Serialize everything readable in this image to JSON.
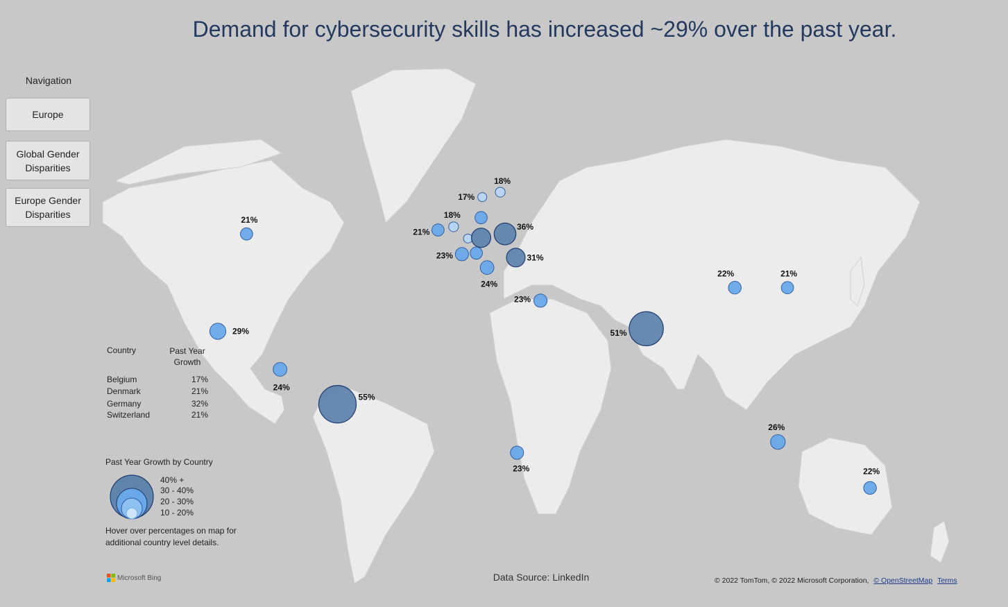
{
  "title": "Demand for cybersecurity skills has increased ~29% over the past year.",
  "navigation": {
    "heading": "Navigation",
    "buttons": [
      {
        "label": "Europe"
      },
      {
        "label": "Global Gender Disparities"
      },
      {
        "label": "Europe Gender Disparities"
      }
    ]
  },
  "table": {
    "col_country": "Country",
    "col_growth": "Past Year Growth",
    "rows": [
      {
        "country": "Belgium",
        "growth": "17%"
      },
      {
        "country": "Denmark",
        "growth": "21%"
      },
      {
        "country": "Germany",
        "growth": "32%"
      },
      {
        "country": "Switzerland",
        "growth": "21%"
      }
    ]
  },
  "size_legend": {
    "title": "Past Year Growth by Country",
    "bins": [
      "40% +",
      "30 - 40%",
      "20 - 30%",
      "10 - 20%"
    ]
  },
  "hover_note": "Hover over percentages on map for additional country level details.",
  "data_source": "Data Source: LinkedIn",
  "attribution": {
    "text": "© 2022 TomTom, © 2022 Microsoft Corporation,",
    "osm_link": "© OpenStreetMap",
    "terms_link": "Terms"
  },
  "bing_logo": "Microsoft Bing",
  "colors": {
    "high": "#5f85ad",
    "mid": "#6aa9e9",
    "low": "#b9d6f5",
    "outline": "#1f3a6e"
  },
  "chart_data": {
    "type": "scatter",
    "title": "Demand for cybersecurity skills has increased ~29% over the past year.",
    "encoding": "bubble map: circle size and colour by past year growth %",
    "bubbles": [
      {
        "id": "canada",
        "region": "Canada",
        "value": 21,
        "label": "21%",
        "lon": -88,
        "lat": 52
      },
      {
        "id": "mexico",
        "region": "Mexico",
        "value": 29,
        "label": "29%",
        "lon": -100,
        "lat": 20
      },
      {
        "id": "colombia",
        "region": "Colombia",
        "value": 24,
        "label": "24%",
        "lon": -74,
        "lat": 4.5
      },
      {
        "id": "brazil",
        "region": "Brazil",
        "value": 55,
        "label": "55%",
        "lon": -50,
        "lat": -10
      },
      {
        "id": "ireland",
        "region": "Ireland",
        "value": 21,
        "label": "21%",
        "lon": -8,
        "lat": 53
      },
      {
        "id": "uk",
        "region": "United Kingdom",
        "value": 18,
        "label": "18%",
        "lon": -1.5,
        "lat": 53.8
      },
      {
        "id": "belgium",
        "region": "Belgium",
        "value": 17,
        "label": "",
        "lon": 4.5,
        "lat": 50.8
      },
      {
        "id": "france",
        "region": "France",
        "value": 23,
        "label": "23%",
        "lon": 2,
        "lat": 46.5
      },
      {
        "id": "switzerland",
        "region": "Switzerland",
        "value": 21,
        "label": "",
        "lon": 8,
        "lat": 46.8
      },
      {
        "id": "germany",
        "region": "Germany",
        "value": 32,
        "label": "",
        "lon": 10,
        "lat": 51
      },
      {
        "id": "denmark",
        "region": "Denmark",
        "value": 21,
        "label": "",
        "lon": 10,
        "lat": 56
      },
      {
        "id": "italy",
        "region": "Italy",
        "value": 24,
        "label": "24%",
        "lon": 12.5,
        "lat": 42.5
      },
      {
        "id": "norway",
        "region": "Norway",
        "value": 17,
        "label": "17%",
        "lon": 10.5,
        "lat": 60.5
      },
      {
        "id": "sweden",
        "region": "Sweden",
        "value": 18,
        "label": "18%",
        "lon": 18,
        "lat": 61.5
      },
      {
        "id": "poland",
        "region": "Poland",
        "value": 36,
        "label": "36%",
        "lon": 20,
        "lat": 52
      },
      {
        "id": "romania",
        "region": "Romania",
        "value": 31,
        "label": "31%",
        "lon": 24.5,
        "lat": 45.5
      },
      {
        "id": "israel",
        "region": "Israel",
        "value": 23,
        "label": "23%",
        "lon": 34.8,
        "lat": 31.5
      },
      {
        "id": "south_africa",
        "region": "South Africa",
        "value": 23,
        "label": "23%",
        "lon": 25,
        "lat": -29
      },
      {
        "id": "india",
        "region": "India",
        "value": 51,
        "label": "51%",
        "lon": 79,
        "lat": 21
      },
      {
        "id": "china",
        "region": "China",
        "value": 22,
        "label": "22%",
        "lon": 116,
        "lat": 36
      },
      {
        "id": "japan",
        "region": "Japan",
        "value": 21,
        "label": "21%",
        "lon": 138,
        "lat": 36
      },
      {
        "id": "australia",
        "region": "Australia",
        "value": 26,
        "label": "26%",
        "lon": 134,
        "lat": -25
      },
      {
        "id": "new_zealand",
        "region": "New Zealand",
        "value": 22,
        "label": "22%",
        "lon": 172.5,
        "lat": -41
      }
    ]
  }
}
